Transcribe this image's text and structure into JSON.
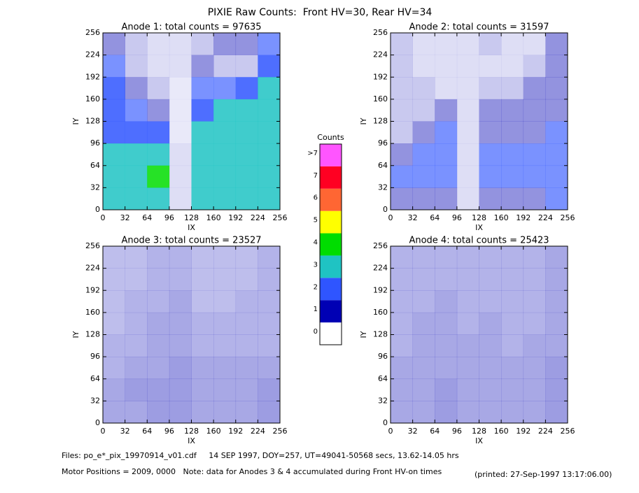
{
  "chart_data": {
    "type": "heatmap",
    "title": "PIXIE Raw Counts:  Front HV=30, Rear HV=34",
    "colorbar": {
      "title": "Counts",
      "labels": [
        "0",
        "1",
        "2",
        "3",
        "4",
        "5",
        "6",
        "7",
        ">7"
      ],
      "colors": [
        "#ffffff",
        "#0000b4",
        "#2f55ff",
        "#1fc3c3",
        "#00dd00",
        "#ffff00",
        "#ff6633",
        "#ff0022",
        "#ff55ff"
      ]
    },
    "panels": [
      {
        "title": "Anode 1: total counts = 97635",
        "xlabel": "IX",
        "ylabel": "IY",
        "xlim": [
          0,
          256
        ],
        "ylim": [
          0,
          256
        ],
        "xticks": [
          0,
          32,
          64,
          96,
          128,
          160,
          192,
          224,
          256
        ],
        "yticks": [
          0,
          32,
          64,
          96,
          128,
          160,
          192,
          224,
          256
        ],
        "density": [
          [
            1,
            0.5,
            0.3,
            0.3,
            0.5,
            1,
            1,
            1.5
          ],
          [
            1.5,
            0.5,
            0.3,
            0.3,
            1,
            0.5,
            0.5,
            2
          ],
          [
            2,
            1,
            0.5,
            0.2,
            1.5,
            1.5,
            2,
            2.5
          ],
          [
            2,
            1.5,
            1,
            0.2,
            2,
            2.5,
            2.5,
            2.5
          ],
          [
            2,
            2,
            2,
            0.2,
            2.5,
            2.5,
            2.5,
            2.5
          ],
          [
            2.5,
            3,
            3,
            0.3,
            2.5,
            3,
            3,
            3
          ],
          [
            3,
            3,
            3.5,
            0.3,
            3,
            3,
            3,
            3
          ],
          [
            3,
            3,
            3,
            0.3,
            3,
            3,
            3,
            3
          ]
        ]
      },
      {
        "title": "Anode 2: total counts = 31597",
        "xlabel": "IX",
        "ylabel": "IY",
        "xlim": [
          0,
          256
        ],
        "ylim": [
          0,
          256
        ],
        "xticks": [
          0,
          32,
          64,
          96,
          128,
          160,
          192,
          224,
          256
        ],
        "yticks": [
          0,
          32,
          64,
          96,
          128,
          160,
          192,
          224,
          256
        ],
        "density": [
          [
            0.5,
            0.3,
            0.3,
            0.3,
            0.5,
            0.3,
            0.3,
            1
          ],
          [
            0.5,
            0.3,
            0.3,
            0.3,
            0.3,
            0.3,
            0.5,
            1
          ],
          [
            0.5,
            0.5,
            0.3,
            0.3,
            0.5,
            0.5,
            1,
            1
          ],
          [
            0.5,
            0.5,
            1,
            0.3,
            1,
            1,
            1,
            1
          ],
          [
            0.5,
            1,
            1.5,
            0.3,
            1,
            1,
            1,
            1.5
          ],
          [
            1,
            1.5,
            1.5,
            0.3,
            1.5,
            1.5,
            1.5,
            1.5
          ],
          [
            1.5,
            1.5,
            1.5,
            0.3,
            1.5,
            1.5,
            1.5,
            1.5
          ],
          [
            1,
            1,
            1,
            0.3,
            1,
            1,
            1,
            1.5
          ]
        ]
      },
      {
        "title": "Anode 3: total counts = 23527",
        "xlabel": "IX",
        "ylabel": "IY",
        "xlim": [
          0,
          256
        ],
        "ylim": [
          0,
          256
        ],
        "xticks": [
          0,
          32,
          64,
          96,
          128,
          160,
          192,
          224,
          256
        ],
        "yticks": [
          0,
          32,
          64,
          96,
          128,
          160,
          192,
          224,
          256
        ],
        "density": [
          [
            0.6,
            0.6,
            0.7,
            0.7,
            0.6,
            0.6,
            0.6,
            0.7
          ],
          [
            0.6,
            0.6,
            0.7,
            0.7,
            0.6,
            0.6,
            0.6,
            0.7
          ],
          [
            0.6,
            0.7,
            0.7,
            0.8,
            0.6,
            0.6,
            0.7,
            0.7
          ],
          [
            0.6,
            0.7,
            0.8,
            0.8,
            0.7,
            0.7,
            0.7,
            0.7
          ],
          [
            0.7,
            0.7,
            0.8,
            0.8,
            0.7,
            0.7,
            0.7,
            0.7
          ],
          [
            0.7,
            0.8,
            0.8,
            0.9,
            0.8,
            0.8,
            0.8,
            0.8
          ],
          [
            0.8,
            0.9,
            0.9,
            0.9,
            0.8,
            0.8,
            0.8,
            0.9
          ],
          [
            0.8,
            0.8,
            0.9,
            0.9,
            0.8,
            0.8,
            0.8,
            0.9
          ]
        ]
      },
      {
        "title": "Anode 4: total counts = 25423",
        "xlabel": "IX",
        "ylabel": "IY",
        "xlim": [
          0,
          256
        ],
        "ylim": [
          0,
          256
        ],
        "xticks": [
          0,
          32,
          64,
          96,
          128,
          160,
          192,
          224,
          256
        ],
        "yticks": [
          0,
          32,
          64,
          96,
          128,
          160,
          192,
          224,
          256
        ],
        "density": [
          [
            0.7,
            0.7,
            0.7,
            0.7,
            0.7,
            0.7,
            0.7,
            0.8
          ],
          [
            0.7,
            0.7,
            0.7,
            0.7,
            0.7,
            0.7,
            0.7,
            0.8
          ],
          [
            0.7,
            0.7,
            0.8,
            0.7,
            0.7,
            0.7,
            0.7,
            0.8
          ],
          [
            0.7,
            0.8,
            0.8,
            0.7,
            0.8,
            0.7,
            0.7,
            0.8
          ],
          [
            0.7,
            0.8,
            0.8,
            0.8,
            0.8,
            0.7,
            0.8,
            0.8
          ],
          [
            0.8,
            0.8,
            0.8,
            0.8,
            0.8,
            0.8,
            0.8,
            0.9
          ],
          [
            0.8,
            0.8,
            0.9,
            0.8,
            0.8,
            0.8,
            0.8,
            0.9
          ],
          [
            0.8,
            0.8,
            0.9,
            0.8,
            0.8,
            0.8,
            0.8,
            0.9
          ]
        ]
      }
    ],
    "footer": [
      "Files: po_e*_pix_19970914_v01.cdf     14 SEP 1997, DOY=257, UT=49041-50568 secs, 13.62-14.05 hrs",
      "Motor Positions = 2009, 0000   Note: data for Anodes 3 & 4 accumulated during Front HV-on times",
      "(printed: 27-Sep-1997 13:17:06.00)"
    ]
  }
}
